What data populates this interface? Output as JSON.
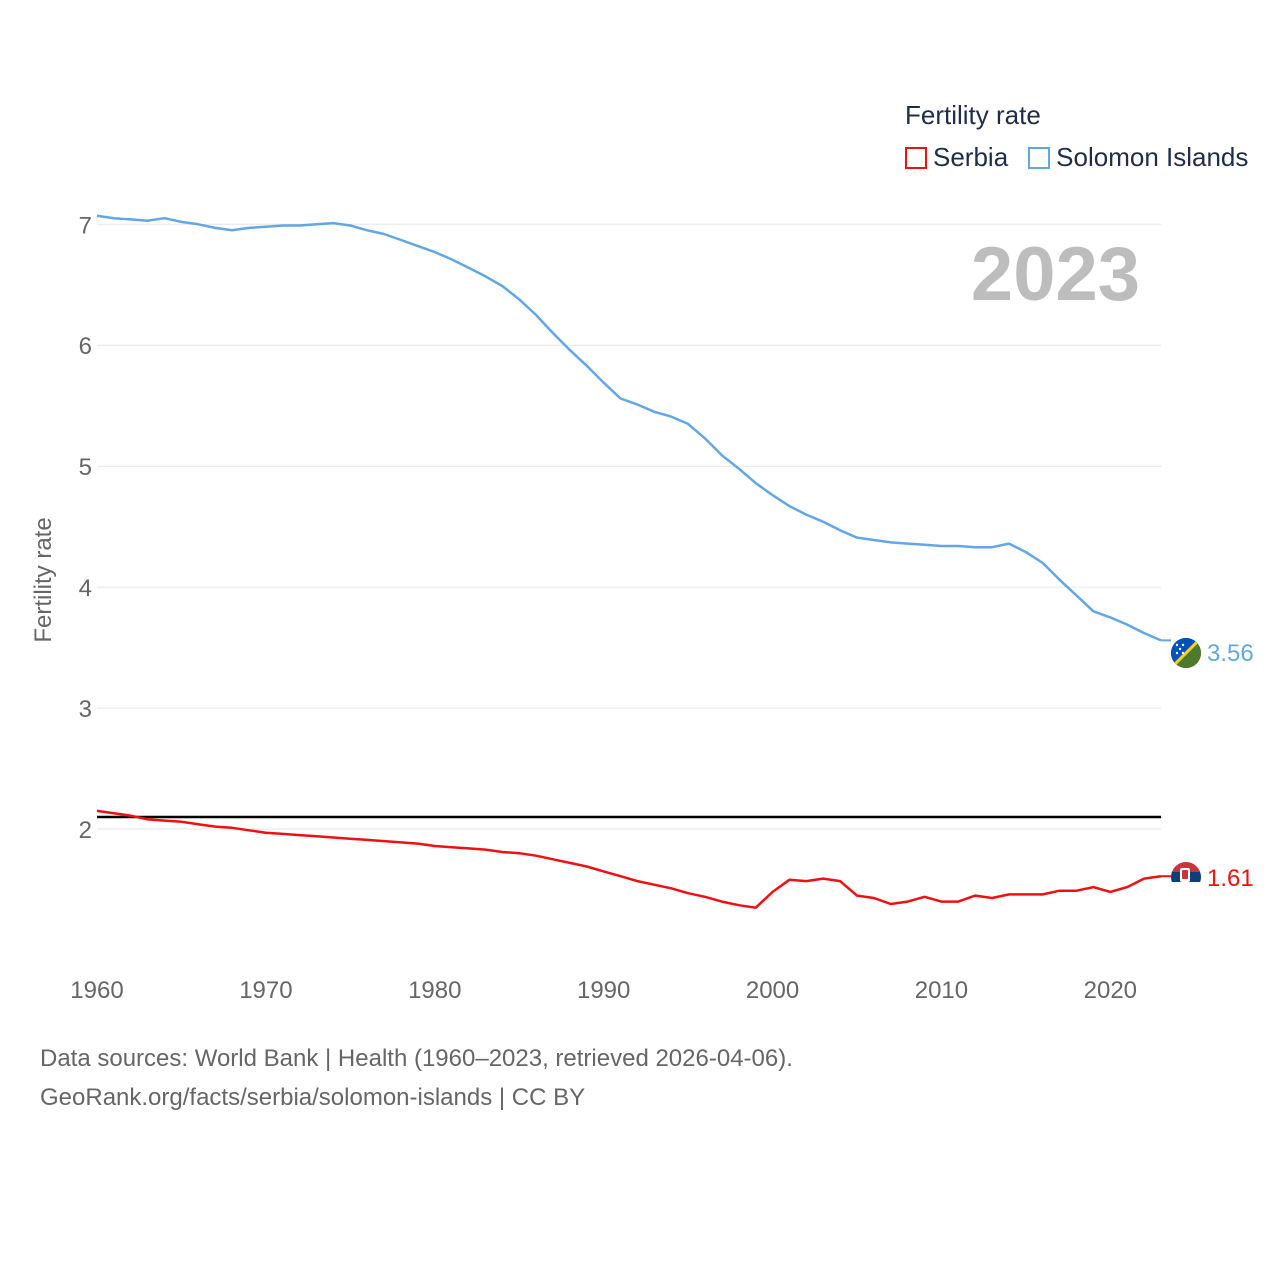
{
  "chart_data": {
    "type": "line",
    "title": "Fertility rate",
    "year_label": "2023",
    "ylabel": "Fertility rate",
    "xlabel": "",
    "xlim": [
      1960,
      2023
    ],
    "ylim": [
      1.0,
      7.3
    ],
    "y_ticks": [
      2,
      3,
      4,
      5,
      6,
      7
    ],
    "x_ticks": [
      1960,
      1970,
      1980,
      1990,
      2000,
      2010,
      2020
    ],
    "reference_line": 2.1,
    "legend_position": "top-right",
    "series": [
      {
        "name": "Serbia",
        "color": "#ee1111",
        "end_label": "1.61",
        "flag": "serbia-flag-icon",
        "years": [
          1960,
          1961,
          1962,
          1963,
          1964,
          1965,
          1966,
          1967,
          1968,
          1969,
          1970,
          1971,
          1972,
          1973,
          1974,
          1975,
          1976,
          1977,
          1978,
          1979,
          1980,
          1981,
          1982,
          1983,
          1984,
          1985,
          1986,
          1987,
          1988,
          1989,
          1990,
          1991,
          1992,
          1993,
          1994,
          1995,
          1996,
          1997,
          1998,
          1999,
          2000,
          2001,
          2002,
          2003,
          2004,
          2005,
          2006,
          2007,
          2008,
          2009,
          2010,
          2011,
          2012,
          2013,
          2014,
          2015,
          2016,
          2017,
          2018,
          2019,
          2020,
          2021,
          2022,
          2023
        ],
        "values": [
          2.15,
          2.13,
          2.11,
          2.08,
          2.07,
          2.06,
          2.04,
          2.02,
          2.01,
          1.99,
          1.97,
          1.96,
          1.95,
          1.94,
          1.93,
          1.92,
          1.91,
          1.9,
          1.89,
          1.88,
          1.86,
          1.85,
          1.84,
          1.83,
          1.81,
          1.8,
          1.78,
          1.75,
          1.72,
          1.69,
          1.65,
          1.61,
          1.57,
          1.54,
          1.51,
          1.47,
          1.44,
          1.4,
          1.37,
          1.35,
          1.48,
          1.58,
          1.57,
          1.59,
          1.57,
          1.45,
          1.43,
          1.38,
          1.4,
          1.44,
          1.4,
          1.4,
          1.45,
          1.43,
          1.46,
          1.46,
          1.46,
          1.49,
          1.49,
          1.52,
          1.48,
          1.52,
          1.59,
          1.61
        ]
      },
      {
        "name": "Solomon Islands",
        "color": "#62a6e6",
        "end_label": "3.56",
        "flag": "solomon-islands-flag-icon",
        "years": [
          1960,
          1961,
          1962,
          1963,
          1964,
          1965,
          1966,
          1967,
          1968,
          1969,
          1970,
          1971,
          1972,
          1973,
          1974,
          1975,
          1976,
          1977,
          1978,
          1979,
          1980,
          1981,
          1982,
          1983,
          1984,
          1985,
          1986,
          1987,
          1988,
          1989,
          1990,
          1991,
          1992,
          1993,
          1994,
          1995,
          1996,
          1997,
          1998,
          1999,
          2000,
          2001,
          2002,
          2003,
          2004,
          2005,
          2006,
          2007,
          2008,
          2009,
          2010,
          2011,
          2012,
          2013,
          2014,
          2015,
          2016,
          2017,
          2018,
          2019,
          2020,
          2021,
          2022,
          2023
        ],
        "values": [
          7.07,
          7.05,
          7.04,
          7.03,
          7.05,
          7.02,
          7.0,
          6.97,
          6.95,
          6.97,
          6.98,
          6.99,
          6.99,
          7.0,
          7.01,
          6.99,
          6.95,
          6.92,
          6.87,
          6.82,
          6.77,
          6.71,
          6.64,
          6.57,
          6.49,
          6.38,
          6.25,
          6.1,
          5.96,
          5.83,
          5.69,
          5.56,
          5.51,
          5.45,
          5.41,
          5.35,
          5.23,
          5.09,
          4.98,
          4.86,
          4.76,
          4.67,
          4.6,
          4.54,
          4.47,
          4.41,
          4.39,
          4.37,
          4.36,
          4.35,
          4.34,
          4.34,
          4.33,
          4.33,
          4.36,
          4.29,
          4.2,
          4.06,
          3.93,
          3.8,
          3.75,
          3.69,
          3.62,
          3.56
        ]
      }
    ]
  },
  "footer": {
    "line1": "Data sources: World Bank | Health (1960–2023, retrieved 2026-04-06).",
    "line2": "GeoRank.org/facts/serbia/solomon-islands | CC BY"
  }
}
